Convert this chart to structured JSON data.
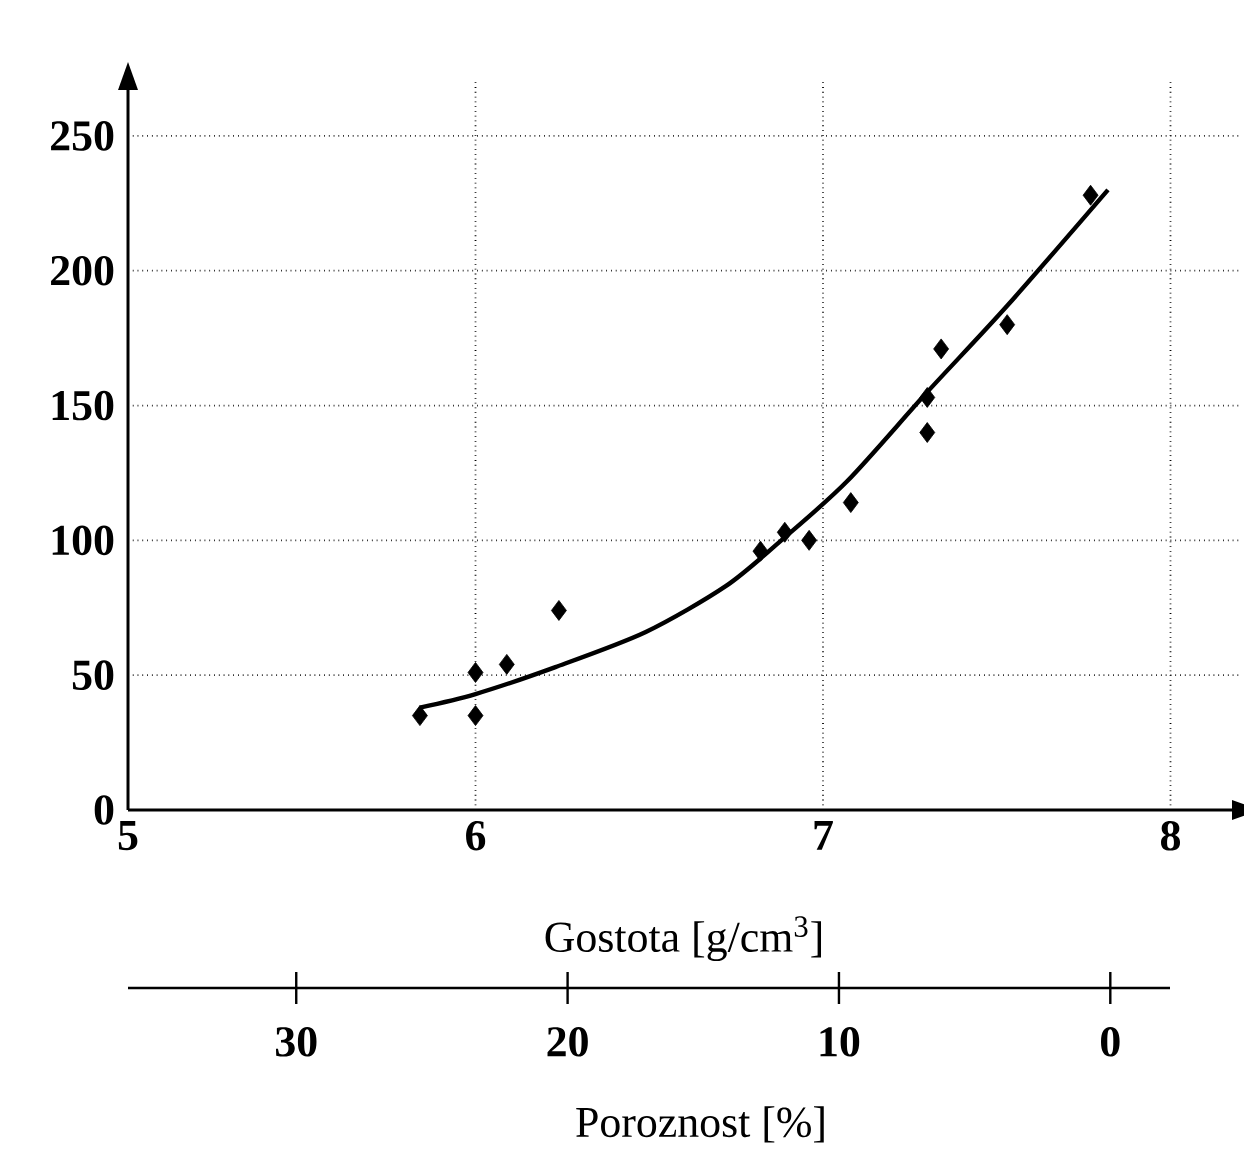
{
  "chart_data": {
    "type": "scatter",
    "xlabel": "Gostota [g/cm$^{3}$]",
    "x2label": "Poroznost [%]",
    "xlim": [
      5,
      8.2
    ],
    "xticks": [
      5,
      6,
      7,
      8
    ],
    "ylim": [
      0,
      270
    ],
    "yticks": [
      0,
      50,
      100,
      150,
      200,
      250
    ],
    "x2lim": [
      36.2,
      -2.2
    ],
    "x2ticks": [
      30,
      20,
      10,
      0
    ],
    "grid": true,
    "series": [
      {
        "marker": "diamond",
        "color": "#000000",
        "x": [
          5.84,
          6.0,
          6.0,
          6.09,
          6.24,
          6.82,
          6.89,
          6.96,
          7.08,
          7.3,
          7.3,
          7.34,
          7.53,
          7.77
        ],
        "values": [
          35,
          51,
          35,
          54,
          74,
          96,
          103,
          100,
          114,
          140,
          153,
          171,
          180,
          228
        ]
      },
      {
        "type": "line",
        "marker": "none",
        "line_style": "solid",
        "color": "#000000",
        "x": [
          5.84,
          6.0,
          6.23,
          6.49,
          6.72,
          6.88,
          7.07,
          7.3,
          7.53,
          7.82
        ],
        "values": [
          38,
          43,
          53,
          66,
          83,
          100,
          122,
          155,
          187,
          230
        ]
      }
    ]
  }
}
